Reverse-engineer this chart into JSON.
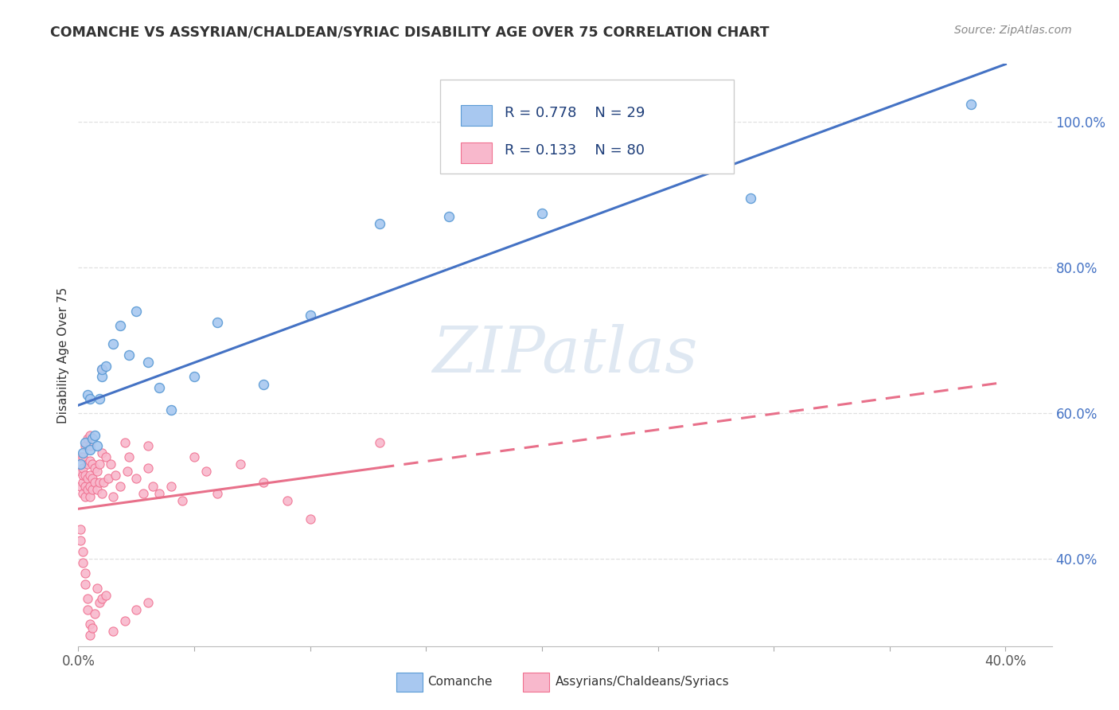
{
  "title": "COMANCHE VS ASSYRIAN/CHALDEAN/SYRIAC DISABILITY AGE OVER 75 CORRELATION CHART",
  "source": "Source: ZipAtlas.com",
  "ylabel": "Disability Age Over 75",
  "xlim": [
    0.0,
    0.42
  ],
  "ylim": [
    0.28,
    1.08
  ],
  "yticks": [
    0.4,
    0.6,
    0.8,
    1.0
  ],
  "comanche_R": 0.778,
  "comanche_N": 29,
  "assyrian_R": 0.133,
  "assyrian_N": 80,
  "comanche_color": "#A8C8F0",
  "assyrian_color": "#F8B8CC",
  "comanche_edge_color": "#5B9BD5",
  "assyrian_edge_color": "#F07090",
  "comanche_line_color": "#4472C4",
  "assyrian_line_color": "#E8708A",
  "background_color": "#FFFFFF",
  "grid_color": "#DDDDDD",
  "comanche_x": [
    0.001,
    0.002,
    0.003,
    0.004,
    0.005,
    0.005,
    0.006,
    0.007,
    0.008,
    0.009,
    0.01,
    0.01,
    0.012,
    0.015,
    0.018,
    0.022,
    0.025,
    0.03,
    0.035,
    0.04,
    0.05,
    0.06,
    0.08,
    0.1,
    0.13,
    0.16,
    0.2,
    0.29,
    0.385
  ],
  "comanche_y": [
    0.53,
    0.545,
    0.56,
    0.625,
    0.55,
    0.62,
    0.565,
    0.57,
    0.555,
    0.62,
    0.65,
    0.66,
    0.665,
    0.695,
    0.72,
    0.68,
    0.74,
    0.67,
    0.635,
    0.605,
    0.65,
    0.725,
    0.64,
    0.735,
    0.86,
    0.87,
    0.875,
    0.895,
    1.025
  ],
  "assyrian_x": [
    0.001,
    0.001,
    0.001,
    0.002,
    0.002,
    0.002,
    0.002,
    0.002,
    0.003,
    0.003,
    0.003,
    0.003,
    0.004,
    0.004,
    0.004,
    0.004,
    0.005,
    0.005,
    0.005,
    0.005,
    0.005,
    0.005,
    0.006,
    0.006,
    0.006,
    0.007,
    0.007,
    0.008,
    0.008,
    0.009,
    0.009,
    0.01,
    0.01,
    0.01,
    0.011,
    0.012,
    0.013,
    0.014,
    0.015,
    0.016,
    0.018,
    0.02,
    0.021,
    0.022,
    0.025,
    0.028,
    0.03,
    0.03,
    0.032,
    0.035,
    0.04,
    0.045,
    0.05,
    0.055,
    0.06,
    0.07,
    0.08,
    0.09,
    0.1,
    0.13,
    0.001,
    0.001,
    0.002,
    0.002,
    0.003,
    0.003,
    0.004,
    0.004,
    0.005,
    0.005,
    0.006,
    0.007,
    0.008,
    0.009,
    0.01,
    0.012,
    0.015,
    0.02,
    0.025,
    0.03
  ],
  "assyrian_y": [
    0.5,
    0.52,
    0.54,
    0.49,
    0.505,
    0.515,
    0.525,
    0.54,
    0.485,
    0.5,
    0.515,
    0.555,
    0.495,
    0.51,
    0.53,
    0.565,
    0.485,
    0.5,
    0.515,
    0.535,
    0.555,
    0.57,
    0.495,
    0.51,
    0.53,
    0.505,
    0.525,
    0.495,
    0.52,
    0.505,
    0.53,
    0.49,
    0.545,
    0.66,
    0.505,
    0.54,
    0.51,
    0.53,
    0.485,
    0.515,
    0.5,
    0.56,
    0.52,
    0.54,
    0.51,
    0.49,
    0.525,
    0.555,
    0.5,
    0.49,
    0.5,
    0.48,
    0.54,
    0.52,
    0.49,
    0.53,
    0.505,
    0.48,
    0.455,
    0.56,
    0.44,
    0.425,
    0.41,
    0.395,
    0.38,
    0.365,
    0.345,
    0.33,
    0.31,
    0.295,
    0.305,
    0.325,
    0.36,
    0.34,
    0.345,
    0.35,
    0.3,
    0.315,
    0.33,
    0.34
  ]
}
